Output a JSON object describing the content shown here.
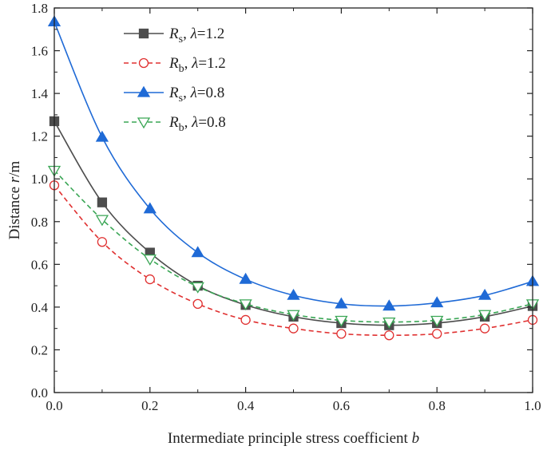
{
  "chart_data": {
    "type": "line",
    "title": "",
    "xlabel": "Intermediate principle stress coefficient b",
    "xlabel_parts": {
      "text": "Intermediate principle stress coefficient ",
      "var": "b"
    },
    "ylabel": "Distance r/m",
    "ylabel_parts": {
      "prefix": "Distance ",
      "var": "r",
      "suffix": "/m"
    },
    "xlim": [
      0.0,
      1.0
    ],
    "ylim": [
      0.0,
      1.8
    ],
    "xticks": [
      "0.0",
      "0.2",
      "0.4",
      "0.6",
      "0.8",
      "1.0"
    ],
    "yticks": [
      "0.0",
      "0.2",
      "0.4",
      "0.6",
      "0.8",
      "1.0",
      "1.2",
      "1.4",
      "1.6",
      "1.8"
    ],
    "grid": false,
    "legend_position": "top-left",
    "x": [
      0.0,
      0.1,
      0.2,
      0.3,
      0.4,
      0.5,
      0.6,
      0.7,
      0.8,
      0.9,
      1.0
    ],
    "series": [
      {
        "name": "Rs, λ=1.2",
        "label_var": "R",
        "label_sub": "s",
        "label_lambda": "λ",
        "label_value": "=1.2",
        "color": "#4d4d4d",
        "dash": "solid",
        "marker": "square",
        "filled": true,
        "values": [
          1.27,
          0.89,
          0.655,
          0.5,
          0.41,
          0.355,
          0.325,
          0.315,
          0.325,
          0.355,
          0.405
        ]
      },
      {
        "name": "Rb, λ=1.2",
        "label_var": "R",
        "label_sub": "b",
        "label_lambda": "λ",
        "label_value": "=1.2",
        "color": "#e03030",
        "dash": "dashed",
        "marker": "circle",
        "filled": false,
        "values": [
          0.97,
          0.705,
          0.53,
          0.415,
          0.34,
          0.3,
          0.275,
          0.268,
          0.275,
          0.3,
          0.34
        ]
      },
      {
        "name": "Rs, λ=0.8",
        "label_var": "R",
        "label_sub": "s",
        "label_lambda": "λ",
        "label_value": "=0.8",
        "color": "#1f6ad6",
        "dash": "solid",
        "marker": "triangle-up",
        "filled": true,
        "values": [
          1.735,
          1.195,
          0.86,
          0.655,
          0.53,
          0.455,
          0.415,
          0.405,
          0.42,
          0.455,
          0.52
        ]
      },
      {
        "name": "Rb, λ=0.8",
        "label_var": "R",
        "label_sub": "b",
        "label_lambda": "λ",
        "label_value": "=0.8",
        "color": "#3aa655",
        "dash": "dashed",
        "marker": "triangle-down",
        "filled": false,
        "values": [
          1.04,
          0.81,
          0.625,
          0.495,
          0.415,
          0.365,
          0.338,
          0.33,
          0.338,
          0.365,
          0.415
        ]
      }
    ]
  }
}
